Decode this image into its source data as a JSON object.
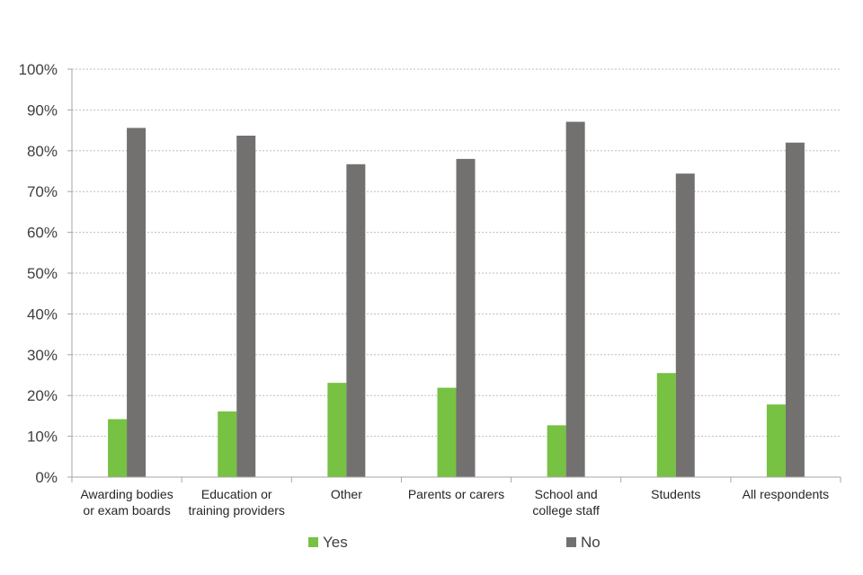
{
  "chart_data": {
    "type": "bar",
    "title": "",
    "xlabel": "",
    "ylabel": "",
    "ylim": [
      0,
      100
    ],
    "y_ticks": [
      "0%",
      "10%",
      "20%",
      "30%",
      "40%",
      "50%",
      "60%",
      "70%",
      "80%",
      "90%",
      "100%"
    ],
    "grid": true,
    "legend_position": "bottom",
    "categories": [
      [
        "Awarding bodies",
        "or exam boards"
      ],
      [
        "Education or",
        "training providers"
      ],
      [
        "Other"
      ],
      [
        "Parents or carers"
      ],
      [
        "School and",
        "college staff"
      ],
      [
        "Students"
      ],
      [
        "All respondents"
      ]
    ],
    "series": [
      {
        "name": "Yes",
        "color": "#77c143",
        "values": [
          14.2,
          16.1,
          23.1,
          21.9,
          12.7,
          25.5,
          17.8
        ]
      },
      {
        "name": "No",
        "color": "#737070",
        "values": [
          85.6,
          83.7,
          76.7,
          78.0,
          87.1,
          74.4,
          82.0
        ]
      }
    ]
  }
}
